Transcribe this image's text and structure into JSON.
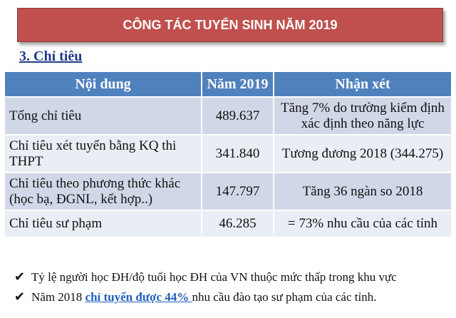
{
  "banner": {
    "title": "CÔNG TÁC TUYỂN SINH NĂM 2019"
  },
  "section": {
    "heading": "3. Chỉ tiêu"
  },
  "table": {
    "headers": [
      "Nội dung",
      "Năm 2019",
      "Nhận xét"
    ],
    "rows": [
      {
        "content": "Tổng chỉ tiêu",
        "value": "489.637",
        "note": "Tăng 7% do trường kiểm định xác định theo năng lực"
      },
      {
        "content": "Chỉ tiêu xét tuyển bằng KQ thi THPT",
        "value": "341.840",
        "note": "Tương đương 2018 (344.275)"
      },
      {
        "content": "Chỉ tiêu theo phương thức khác (học bạ, ĐGNL, kết hợp..)",
        "value": "147.797",
        "note": "Tăng 36 ngàn so 2018"
      },
      {
        "content": "Chỉ tiêu sư phạm",
        "value": "46.285",
        "note": "= 73% nhu cầu của các tỉnh"
      }
    ]
  },
  "bullets": {
    "item1": "Tỷ lệ người học ĐH/độ tuổi học ĐH của VN thuộc mức thấp trong khu vực",
    "item2_prefix": "Năm 2018 ",
    "item2_highlight": "chỉ tuyển được 44% ",
    "item2_suffix": "nhu cầu đào tạo sư phạm của các tỉnh."
  },
  "colors": {
    "banner": "#c0504d",
    "header": "#4f81bd",
    "row_odd": "#d0d8e8",
    "row_even": "#e9edf4",
    "highlight": "#1f5fbf"
  }
}
